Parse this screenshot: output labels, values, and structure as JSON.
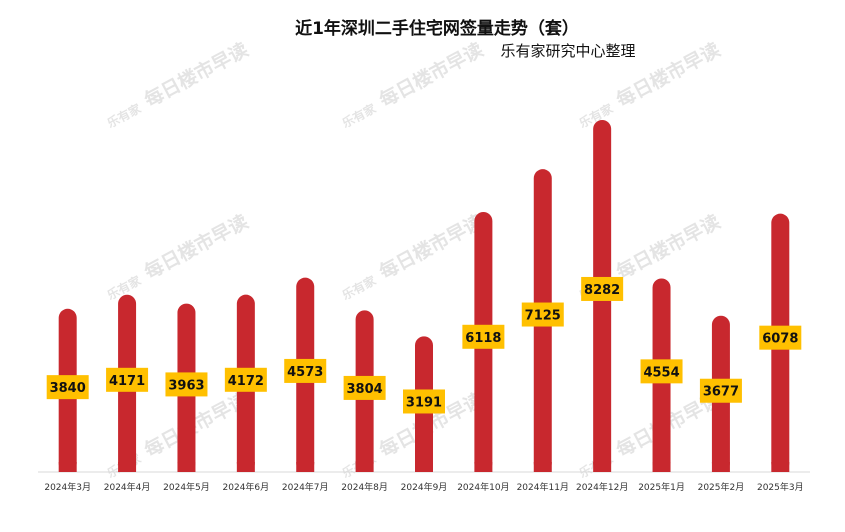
{
  "watermark": {
    "logo_text": "乐有家",
    "text": "每日楼市早读"
  },
  "chart_data": {
    "type": "bar",
    "title": "近1年深圳二手住宅网签量走势（套）",
    "subtitle": "乐有家研究中心整理",
    "categories": [
      "2024年3月",
      "2024年4月",
      "2024年5月",
      "2024年6月",
      "2024年7月",
      "2024年8月",
      "2024年9月",
      "2024年10月",
      "2024年11月",
      "2024年12月",
      "2025年1月",
      "2025年2月",
      "2025年3月"
    ],
    "values": [
      3840,
      4171,
      3963,
      4172,
      4573,
      3804,
      3191,
      6118,
      7125,
      8282,
      4554,
      3677,
      6078
    ],
    "data_labels": [
      "3840",
      "4171",
      "3963",
      "4172",
      "4573",
      "3804",
      "3191",
      "6118",
      "7125",
      "8282",
      "4554",
      "3677",
      "6078"
    ],
    "xlabel": "",
    "ylabel": "",
    "ylim": [
      0,
      8282
    ],
    "grid": false,
    "legend": "none",
    "bar_color": "#c8282e",
    "label_bg_color": "#ffc000",
    "axis_color": "#d9d9d9"
  }
}
